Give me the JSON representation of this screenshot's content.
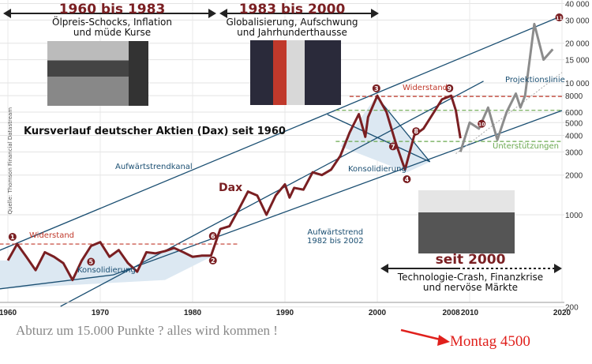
{
  "eras": [
    {
      "title": "1960 bis 1983",
      "subtitle_1": "Ölpreis-Schocks, Inflation",
      "subtitle_2": "und müde Kurse"
    },
    {
      "title": "1983 bis 2000",
      "subtitle_1": "Globalisierung, Aufschwung",
      "subtitle_2": "und Jahrhunderthausse"
    },
    {
      "title": "seit 2000",
      "subtitle_1": "Technologie-Crash, Finanzkrise",
      "subtitle_2": "und nervöse Märkte"
    }
  ],
  "source": "Quelle: Thomson Financial Datastream",
  "labels": {
    "widerstand_1": "Widerstand",
    "widerstand_2": "Widerstand",
    "konsolidierung_1": "Konsolidierung",
    "konsolidierung_2": "Konsolidierung",
    "aufwaertstrendkanal": "Aufwärtstrendkanal",
    "aufwaertstrend_1": "Aufwärtstrend",
    "aufwaertstrend_2": "1982 bis 2002",
    "projektionslinie": "Projektionslinie",
    "unterstuetzungen": "Unterstützungen",
    "dax": "Dax"
  },
  "footer": {
    "comment": "Abturz um 15.000 Punkte ? alles wird kommen !",
    "montag": "Montag 4500"
  },
  "colors": {
    "dax": "#7a1f22",
    "projection": "#8c8c8c",
    "trend": "#1b4f72",
    "resistance": "#c0392b",
    "support": "#6aa84f",
    "shade": "#dce8f2"
  },
  "chart_data": {
    "type": "line",
    "title": "Kursverlauf deutscher Aktien (Dax) seit 1960",
    "y_scale": "log",
    "ylim": [
      200,
      40000
    ],
    "xlim": [
      1959,
      2021
    ],
    "grid": true,
    "y_ticks": [
      200,
      1000,
      2000,
      3000,
      4000,
      5000,
      6000,
      8000,
      10000,
      15000,
      20000,
      30000,
      40000
    ],
    "y_tick_labels": [
      "200",
      "1000",
      "2000",
      "3000",
      "4000",
      "5000",
      "6000",
      "8000",
      "10 000",
      "15 000",
      "20 000",
      "30 000",
      "40 000"
    ],
    "x_ticks": [
      1960,
      1970,
      1980,
      1990,
      2000,
      2008,
      2010,
      2020
    ],
    "x_tick_labels": [
      "1960",
      "1970",
      "1980",
      "1990",
      "2000",
      "2008",
      "2010",
      "2020"
    ],
    "series": [
      {
        "name": "Dax",
        "style": "actual",
        "x": [
          1960,
          1961,
          1962,
          1963,
          1964,
          1965,
          1966,
          1967,
          1968,
          1969,
          1970,
          1971,
          1972,
          1973,
          1974,
          1975,
          1976,
          1977,
          1978,
          1979,
          1980,
          1981,
          1982,
          1983,
          1984,
          1985,
          1986,
          1987,
          1988,
          1989,
          1990,
          1990.5,
          1991,
          1992,
          1993,
          1994,
          1995,
          1996,
          1997,
          1998,
          1998.7,
          1999,
          2000,
          2001,
          2002,
          2003,
          2004,
          2005,
          2006,
          2007,
          2008,
          2008.5,
          2009
        ],
        "y": [
          450,
          600,
          480,
          380,
          520,
          480,
          430,
          320,
          450,
          580,
          620,
          480,
          540,
          430,
          370,
          520,
          510,
          530,
          560,
          520,
          480,
          490,
          490,
          780,
          820,
          1100,
          1500,
          1400,
          1000,
          1400,
          1700,
          1350,
          1600,
          1550,
          2100,
          2000,
          2200,
          2800,
          4200,
          5800,
          3900,
          5500,
          8000,
          6000,
          3500,
          2200,
          4000,
          4500,
          5800,
          7500,
          8000,
          6200,
          3800
        ]
      },
      {
        "name": "Projektion",
        "style": "projection",
        "x": [
          2009,
          2010,
          2011,
          2012,
          2013,
          2014,
          2015,
          2015.5,
          2016,
          2017,
          2018,
          2019
        ],
        "y": [
          3000,
          5000,
          4500,
          6500,
          3700,
          6000,
          8300,
          6500,
          8000,
          28000,
          15000,
          18000
        ]
      }
    ],
    "lines": [
      {
        "kind": "trend",
        "from": [
          1959.1,
          537
        ],
        "to": [
          2020,
          32300
        ]
      },
      {
        "kind": "trend",
        "from": [
          1971.4,
          350
        ],
        "to": [
          2020,
          6170
        ]
      },
      {
        "kind": "trend",
        "from": [
          1965.7,
          202
        ],
        "to": [
          2011.5,
          10300
        ]
      },
      {
        "kind": "trend",
        "from": [
          1959.1,
          274
        ],
        "to": [
          1971.4,
          350
        ]
      },
      {
        "kind": "trend",
        "from": [
          1994.6,
          5760
        ],
        "to": [
          2005.7,
          2520
        ]
      },
      {
        "kind": "trend",
        "from": [
          1999.9,
          7900
        ],
        "to": [
          2005.7,
          2520
        ]
      },
      {
        "kind": "resistance",
        "from": [
          1959.1,
          600
        ],
        "to": [
          1985,
          600
        ]
      },
      {
        "kind": "resistance",
        "from": [
          1997,
          7900
        ],
        "to": [
          2020,
          7900
        ]
      },
      {
        "kind": "support",
        "from": [
          1995.5,
          6200
        ],
        "to": [
          2020,
          6200
        ]
      },
      {
        "kind": "support",
        "from": [
          1995.5,
          3600
        ],
        "to": [
          2020,
          3600
        ]
      },
      {
        "kind": "projection-line",
        "from": [
          2008.5,
          2900
        ],
        "to": [
          2020,
          12000
        ]
      }
    ],
    "markers": [
      {
        "n": "1",
        "x": 1960.5,
        "y": 680
      },
      {
        "n": "2",
        "x": 1982.2,
        "y": 450
      },
      {
        "n": "3",
        "x": 1999.9,
        "y": 9100
      },
      {
        "n": "4",
        "x": 2003.2,
        "y": 1860
      },
      {
        "n": "5",
        "x": 1969,
        "y": 440
      },
      {
        "n": "6",
        "x": 1982.2,
        "y": 690
      },
      {
        "n": "7",
        "x": 2001.7,
        "y": 3300
      },
      {
        "n": "8",
        "x": 2004.2,
        "y": 4300
      },
      {
        "n": "9",
        "x": 2007.8,
        "y": 9100
      },
      {
        "n": "10",
        "x": 2011.3,
        "y": 4900
      },
      {
        "n": "11",
        "x": 2019.7,
        "y": 31400
      }
    ]
  }
}
